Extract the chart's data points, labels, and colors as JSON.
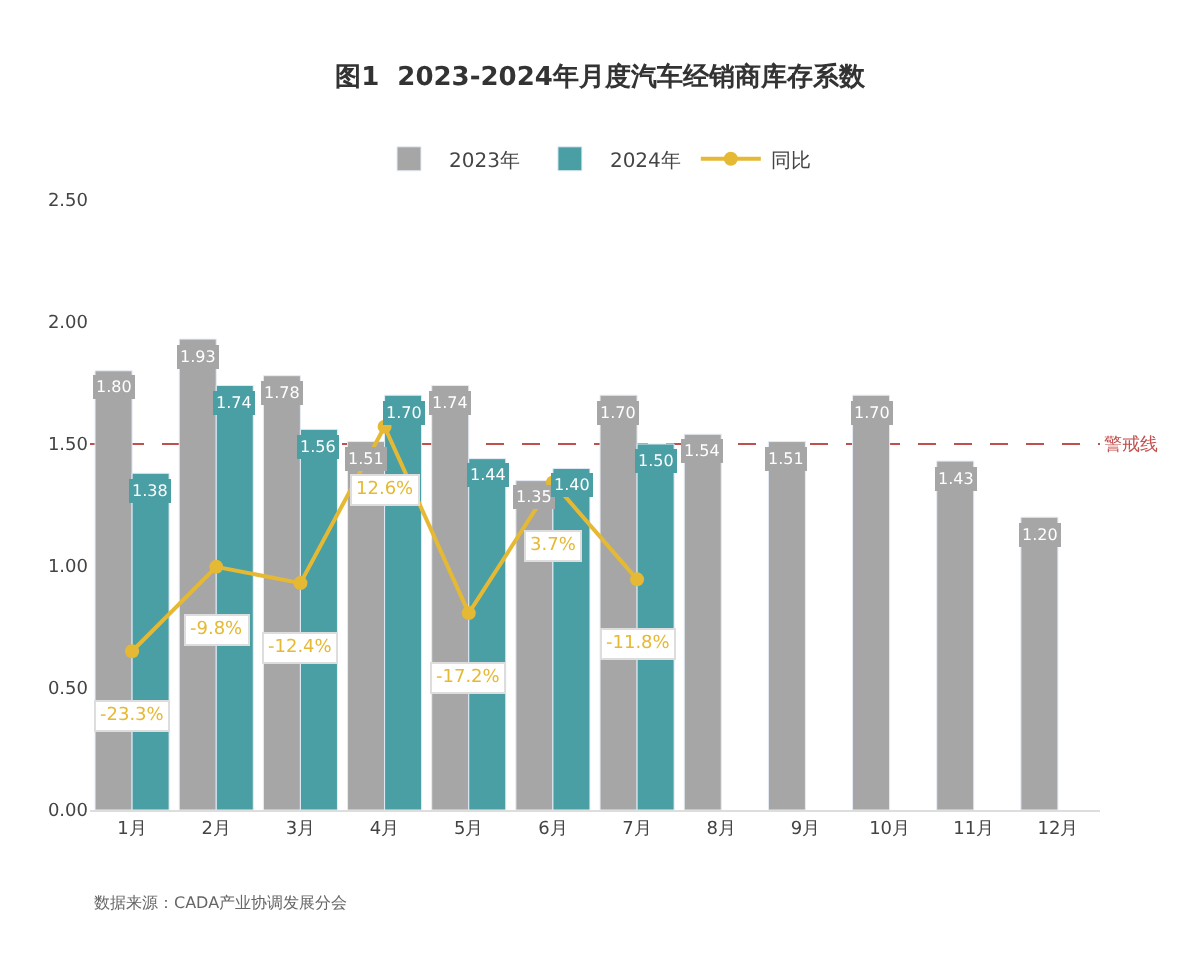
{
  "chart_data": {
    "type": "bar",
    "title": "图1  2023-2024年月度汽车经销商库存系数",
    "categories": [
      "1月",
      "2月",
      "3月",
      "4月",
      "5月",
      "6月",
      "7月",
      "8月",
      "9月",
      "10月",
      "11月",
      "12月"
    ],
    "series": [
      {
        "name": "2023年",
        "color": "#a6a6a6",
        "values": [
          1.8,
          1.93,
          1.78,
          1.51,
          1.74,
          1.35,
          1.7,
          1.54,
          1.51,
          1.7,
          1.43,
          1.2
        ],
        "value_labels": [
          "1.80",
          "1.93",
          "1.78",
          "1.51",
          "1.74",
          "1.35",
          "1.70",
          "1.54",
          "1.51",
          "1.70",
          "1.43",
          "1.20"
        ]
      },
      {
        "name": "2024年",
        "color": "#4a9fa5",
        "values": [
          1.38,
          1.74,
          1.56,
          1.7,
          1.44,
          1.4,
          1.5,
          null,
          null,
          null,
          null,
          null
        ],
        "value_labels": [
          "1.38",
          "1.74",
          "1.56",
          "1.70",
          "1.44",
          "1.40",
          "1.50",
          null,
          null,
          null,
          null,
          null
        ]
      },
      {
        "name": "同比",
        "type": "line",
        "axis": "y2",
        "color": "#e6b934",
        "marker": "circle",
        "values": [
          -23.3,
          -9.8,
          -12.4,
          12.6,
          -17.2,
          3.7,
          -11.8,
          null,
          null,
          null,
          null,
          null
        ],
        "value_labels": [
          "-23.3%",
          "-9.8%",
          "-12.4%",
          "12.6%",
          "-17.2%",
          "3.7%",
          "-11.8%",
          null,
          null,
          null,
          null,
          null
        ]
      }
    ],
    "ylim": [
      0,
      2.5
    ],
    "yticks": [
      {
        "value": 0,
        "label": "0.00"
      },
      {
        "value": 0.5,
        "label": "0.50"
      },
      {
        "value": 1,
        "label": "1.00"
      },
      {
        "value": 1.5,
        "label": "1.50"
      },
      {
        "value": 2,
        "label": "2.00"
      },
      {
        "value": 2.5,
        "label": "2.50"
      }
    ],
    "ref_lines": [
      {
        "axis": "y",
        "value": 1.5,
        "label": "警戒线",
        "color": "#c0504d",
        "line_style": "dashed"
      }
    ],
    "legend": "top",
    "grid": false,
    "annotations": [
      "数据来源：CADA产业协调发展分会"
    ]
  }
}
